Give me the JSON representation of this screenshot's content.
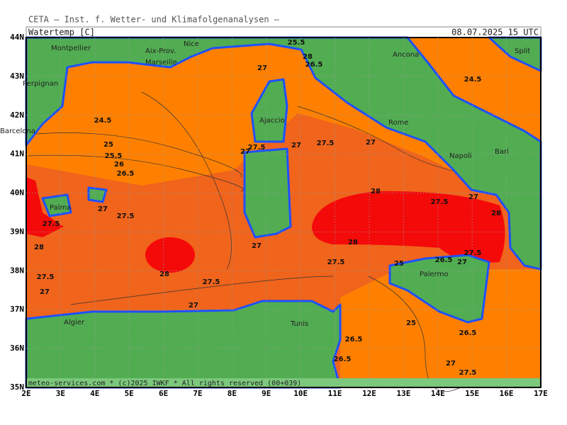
{
  "header": {
    "organisation": "CETA — Inst. f. Wetter- und Klimafolgenanalysen —",
    "variable": "Watertemp [C]",
    "date": "08.07.2025 15 UTC"
  },
  "footer": "meteo-services.com * (c)2025 IWKF * All rights reserved (00+039)",
  "longitude_labels": [
    "2E",
    "3E",
    "4E",
    "5E",
    "6E",
    "7E",
    "8E",
    "9E",
    "10E",
    "11E",
    "12E",
    "13E",
    "14E",
    "15E",
    "16E",
    "17E"
  ],
  "latitude_labels": [
    "44N",
    "43N",
    "42N",
    "41N",
    "40N",
    "39N",
    "38N",
    "37N",
    "36N",
    "35N"
  ],
  "places": [
    "Montpellier",
    "Aix-Prov.",
    "Nice",
    "Marseille",
    "Perpignan",
    "Barcelona",
    "Ajaccio",
    "Ancona",
    "Split",
    "Rome",
    "Napoli",
    "Bari",
    "Palma",
    "Palermo",
    "Algier",
    "Tunis"
  ],
  "contour_labels": [
    25.5,
    28,
    26.5,
    27,
    24.5,
    24.5,
    25,
    25.5,
    26,
    26.5,
    27.5,
    27,
    27,
    27.5,
    27,
    28,
    27.5,
    27,
    28,
    27,
    27.5,
    27.5,
    28,
    27,
    28,
    27.5,
    25,
    26.5,
    27,
    27.5,
    28,
    27.5,
    27.5,
    27,
    27,
    25,
    26.5,
    26.5,
    27,
    27.5,
    26.5
  ]
}
